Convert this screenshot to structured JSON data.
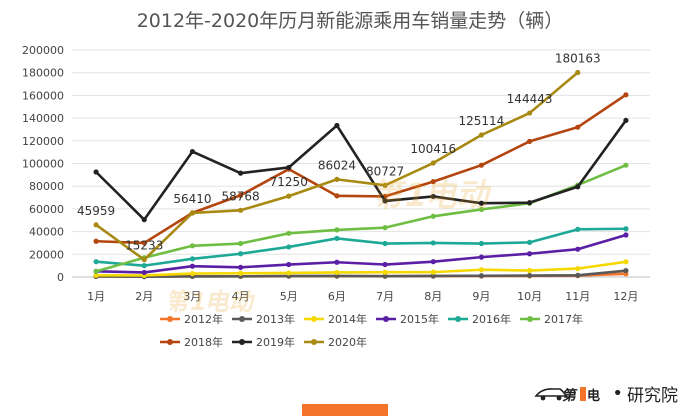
{
  "chart_data": {
    "type": "line",
    "title": "2012年-2020年历月新能源乘用车销量走势（辆）",
    "categories": [
      "1月",
      "2月",
      "3月",
      "4月",
      "5月",
      "6月",
      "7月",
      "8月",
      "9月",
      "10月",
      "11月",
      "12月"
    ],
    "ylim": [
      0,
      200000
    ],
    "yticks": [
      0,
      20000,
      40000,
      60000,
      80000,
      100000,
      120000,
      140000,
      160000,
      180000,
      200000
    ],
    "grid": true,
    "legend_position": "bottom",
    "series": [
      {
        "name": "2012年",
        "color": "#f4752a",
        "values": [
          500,
          500,
          600,
          600,
          700,
          700,
          700,
          800,
          900,
          1000,
          1200,
          2800
        ]
      },
      {
        "name": "2013年",
        "color": "#595959",
        "values": [
          500,
          300,
          500,
          600,
          800,
          900,
          700,
          900,
          1100,
          1300,
          1500,
          5600
        ]
      },
      {
        "name": "2014年",
        "color": "#f5d800",
        "values": [
          1500,
          1400,
          3000,
          3300,
          3600,
          4000,
          4200,
          4300,
          6400,
          5700,
          7400,
          13400
        ]
      },
      {
        "name": "2015年",
        "color": "#5b1fa6",
        "values": [
          5000,
          4000,
          9500,
          8500,
          11000,
          13000,
          11000,
          13500,
          17500,
          20500,
          24500,
          37000
        ]
      },
      {
        "name": "2016年",
        "color": "#1ea896",
        "values": [
          13500,
          10000,
          16000,
          20500,
          26500,
          34000,
          29500,
          30000,
          29500,
          30500,
          42000,
          42500
        ]
      },
      {
        "name": "2017年",
        "color": "#6fbe44",
        "values": [
          5000,
          17000,
          27500,
          29500,
          38500,
          41500,
          43500,
          53500,
          59500,
          65000,
          81000,
          98500
        ]
      },
      {
        "name": "2018年",
        "color": "#b4450f",
        "values": [
          31500,
          30000,
          56500,
          72000,
          95000,
          71500,
          71000,
          84000,
          98500,
          119500,
          132000,
          160500
        ]
      },
      {
        "name": "2019年",
        "color": "#222222",
        "values": [
          92500,
          50500,
          110500,
          91500,
          96500,
          133500,
          67000,
          71000,
          65000,
          65500,
          79500,
          138000
        ]
      },
      {
        "name": "2020年",
        "color": "#a88a13",
        "values": [
          45959,
          15233,
          56410,
          58768,
          71250,
          86024,
          80727,
          100416,
          125114,
          144443,
          180163,
          null
        ]
      }
    ],
    "data_labels_series": "2020年"
  },
  "brand": {
    "name": "研究院"
  }
}
